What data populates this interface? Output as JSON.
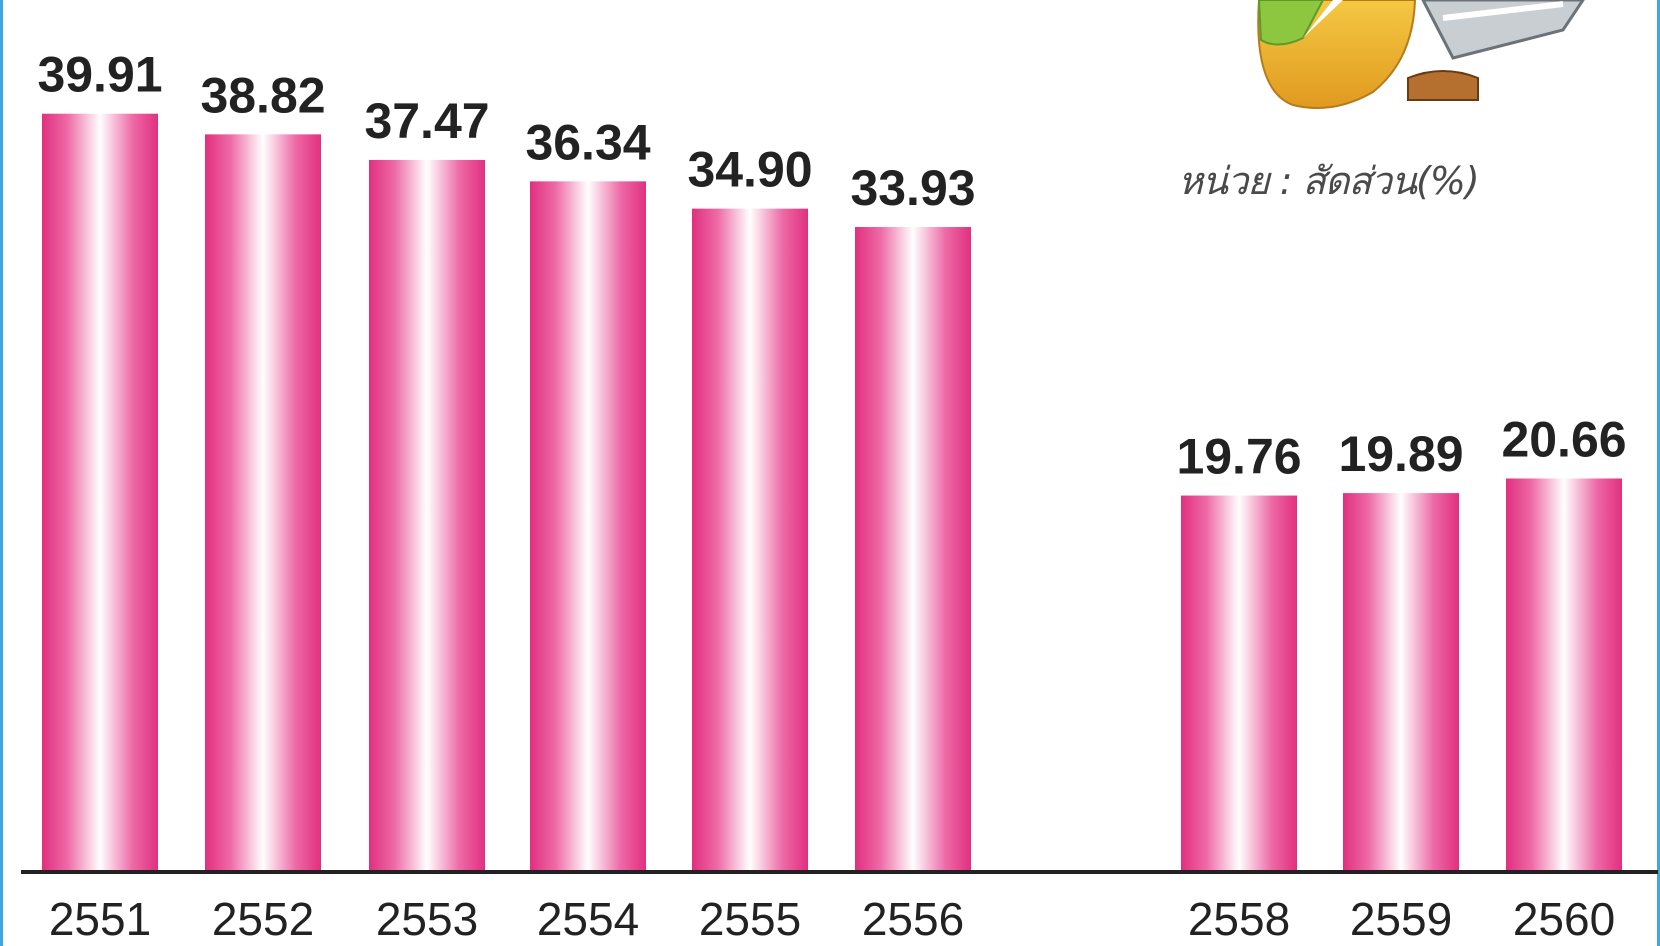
{
  "chart_data": {
    "type": "bar",
    "unit_label": "หน่วย : สัดส่วน(%)",
    "categories": [
      "2551",
      "2552",
      "2553",
      "2554",
      "2555",
      "2556",
      "2558",
      "2559",
      "2560"
    ],
    "values": [
      39.91,
      38.82,
      37.47,
      36.34,
      34.9,
      33.93,
      19.76,
      19.89,
      20.66
    ],
    "value_labels": [
      "39.91",
      "38.82",
      "37.47",
      "36.34",
      "34.90",
      "33.93",
      "19.76",
      "19.89",
      "20.66"
    ],
    "ylim": [
      0,
      45
    ],
    "grid": false,
    "colors": {
      "bar_edge": "#e0307f",
      "bar_center": "#ffffff",
      "axis": "#222222",
      "label": "#222222"
    }
  },
  "decoration": {
    "illustration": "pie-chart-and-calculator-icon"
  }
}
